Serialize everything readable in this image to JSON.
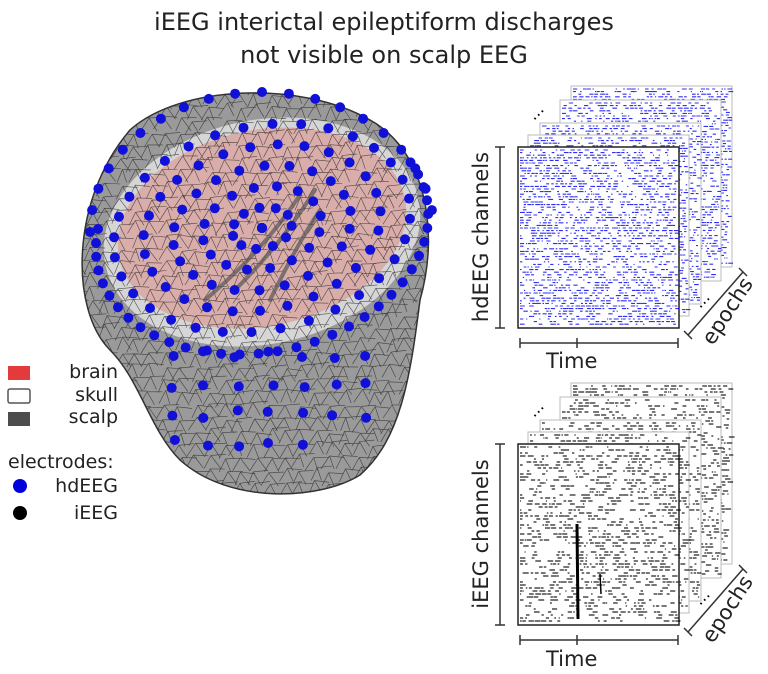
{
  "title": {
    "line1": "iEEG interictal epileptiform discharges",
    "line2": "not visible on scalp EEG"
  },
  "legend": {
    "tissues": [
      {
        "label": "brain",
        "color": "#e33b3b"
      },
      {
        "label": "skull",
        "color": "#ffffff"
      },
      {
        "label": "scalp",
        "color": "#4d4d4d"
      }
    ],
    "electrodes_heading": "electrodes:",
    "electrodes": [
      {
        "label": "hdEEG",
        "color": "#0000dd"
      },
      {
        "label": "iEEG",
        "color": "#000000"
      }
    ]
  },
  "panels": {
    "hdeeg": {
      "ylabel": "hdEEG channels",
      "xlabel": "Time",
      "depth_label": "epochs",
      "color": "#1a1aee"
    },
    "ieeg": {
      "ylabel": "iEEG channels",
      "xlabel": "Time",
      "depth_label": "epochs",
      "color": "#000000"
    }
  }
}
